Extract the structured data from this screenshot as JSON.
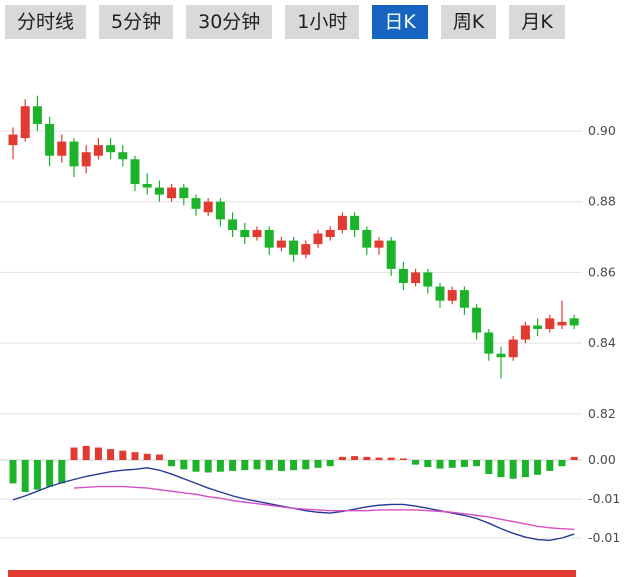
{
  "tabs": {
    "items": [
      {
        "name": "tab-timeline",
        "label": "分时线",
        "active": false
      },
      {
        "name": "tab-5min",
        "label": "5分钟",
        "active": false
      },
      {
        "name": "tab-30min",
        "label": "30分钟",
        "active": false
      },
      {
        "name": "tab-1hour",
        "label": "1小时",
        "active": false
      },
      {
        "name": "tab-daily-k",
        "label": "日K",
        "active": true
      },
      {
        "name": "tab-weekly-k",
        "label": "周K",
        "active": false
      },
      {
        "name": "tab-monthly-k",
        "label": "月K",
        "active": false
      }
    ]
  },
  "colors": {
    "up": "#e23a30",
    "down": "#1cb32b",
    "dif_line": "#273896",
    "dea_line": "#d44fc4",
    "grid": "#e3e3e3",
    "zero_line": "#cccccc",
    "axis_text": "#4a4a4a",
    "tab_bg": "#d9d9d9",
    "tab_active_bg": "#1565c0",
    "bottom_strip": "#e23a30"
  },
  "chart_data": {
    "type": "candlestick",
    "note_convention": "red = up (close >= open), green = down, Chinese market style",
    "price_panel": {
      "y_axis_ticks": [
        {
          "label": "0.90",
          "value": 0.9
        },
        {
          "label": "0.88",
          "value": 0.88
        },
        {
          "label": "0.86",
          "value": 0.86
        },
        {
          "label": "0.84",
          "value": 0.84
        },
        {
          "label": "0.82",
          "value": 0.82
        }
      ],
      "y_range": [
        0.815,
        0.9115
      ],
      "candles_ohlc": [
        [
          0.896,
          0.901,
          0.892,
          0.899
        ],
        [
          0.898,
          0.909,
          0.897,
          0.907
        ],
        [
          0.907,
          0.91,
          0.9,
          0.902
        ],
        [
          0.902,
          0.904,
          0.89,
          0.893
        ],
        [
          0.893,
          0.899,
          0.891,
          0.897
        ],
        [
          0.897,
          0.898,
          0.887,
          0.89
        ],
        [
          0.89,
          0.896,
          0.888,
          0.894
        ],
        [
          0.893,
          0.898,
          0.892,
          0.896
        ],
        [
          0.896,
          0.898,
          0.892,
          0.894
        ],
        [
          0.894,
          0.896,
          0.89,
          0.892
        ],
        [
          0.892,
          0.893,
          0.883,
          0.885
        ],
        [
          0.885,
          0.888,
          0.882,
          0.884
        ],
        [
          0.884,
          0.886,
          0.88,
          0.882
        ],
        [
          0.881,
          0.885,
          0.88,
          0.884
        ],
        [
          0.884,
          0.885,
          0.879,
          0.881
        ],
        [
          0.881,
          0.882,
          0.876,
          0.878
        ],
        [
          0.877,
          0.881,
          0.876,
          0.88
        ],
        [
          0.88,
          0.881,
          0.873,
          0.875
        ],
        [
          0.875,
          0.877,
          0.87,
          0.872
        ],
        [
          0.872,
          0.874,
          0.868,
          0.87
        ],
        [
          0.87,
          0.873,
          0.869,
          0.872
        ],
        [
          0.872,
          0.873,
          0.865,
          0.867
        ],
        [
          0.867,
          0.87,
          0.866,
          0.869
        ],
        [
          0.869,
          0.87,
          0.863,
          0.865
        ],
        [
          0.865,
          0.869,
          0.864,
          0.868
        ],
        [
          0.868,
          0.872,
          0.867,
          0.871
        ],
        [
          0.87,
          0.873,
          0.869,
          0.872
        ],
        [
          0.872,
          0.877,
          0.871,
          0.876
        ],
        [
          0.876,
          0.877,
          0.87,
          0.872
        ],
        [
          0.872,
          0.873,
          0.865,
          0.867
        ],
        [
          0.867,
          0.87,
          0.865,
          0.869
        ],
        [
          0.869,
          0.87,
          0.859,
          0.861
        ],
        [
          0.861,
          0.863,
          0.855,
          0.857
        ],
        [
          0.857,
          0.861,
          0.856,
          0.86
        ],
        [
          0.86,
          0.861,
          0.854,
          0.856
        ],
        [
          0.856,
          0.857,
          0.85,
          0.852
        ],
        [
          0.852,
          0.856,
          0.851,
          0.855
        ],
        [
          0.855,
          0.856,
          0.848,
          0.85
        ],
        [
          0.85,
          0.851,
          0.841,
          0.843
        ],
        [
          0.843,
          0.844,
          0.835,
          0.837
        ],
        [
          0.837,
          0.839,
          0.83,
          0.836
        ],
        [
          0.836,
          0.842,
          0.835,
          0.841
        ],
        [
          0.841,
          0.846,
          0.84,
          0.845
        ],
        [
          0.845,
          0.847,
          0.842,
          0.844
        ],
        [
          0.844,
          0.848,
          0.843,
          0.847
        ],
        [
          0.845,
          0.852,
          0.844,
          0.846
        ],
        [
          0.847,
          0.848,
          0.844,
          0.845
        ]
      ]
    },
    "macd_panel": {
      "y_axis_ticks": [
        {
          "label": "0.00",
          "value": 0.0
        },
        {
          "label": "-0.01",
          "value": -0.005
        },
        {
          "label": "-0.01",
          "value": -0.01
        }
      ],
      "histogram": [
        -0.003,
        -0.0041,
        -0.0038,
        -0.0034,
        -0.003,
        0.0016,
        0.0018,
        0.0016,
        0.0014,
        0.0012,
        0.001,
        0.0008,
        0.0007,
        -0.0008,
        -0.0012,
        -0.0015,
        -0.0016,
        -0.0015,
        -0.0014,
        -0.0013,
        -0.0012,
        -0.0013,
        -0.0014,
        -0.0013,
        -0.0012,
        -0.001,
        -0.0008,
        0.0004,
        0.0005,
        0.0004,
        0.0003,
        0.0003,
        0.0002,
        -0.0006,
        -0.0009,
        -0.0011,
        -0.001,
        -0.0009,
        -0.0008,
        -0.0018,
        -0.0022,
        -0.0024,
        -0.0022,
        -0.0019,
        -0.0014,
        -0.0008,
        0.0004
      ],
      "dif": [
        -0.0051,
        -0.0046,
        -0.004,
        -0.0034,
        -0.0029,
        -0.0025,
        -0.0021,
        -0.0018,
        -0.0015,
        -0.0013,
        -0.0012,
        -0.001,
        -0.0013,
        -0.0018,
        -0.0024,
        -0.003,
        -0.0036,
        -0.0041,
        -0.0046,
        -0.005,
        -0.0053,
        -0.0056,
        -0.0059,
        -0.0062,
        -0.0065,
        -0.0067,
        -0.0068,
        -0.0066,
        -0.0063,
        -0.006,
        -0.0058,
        -0.0057,
        -0.0057,
        -0.0059,
        -0.0062,
        -0.0065,
        -0.0068,
        -0.0071,
        -0.0075,
        -0.0081,
        -0.0088,
        -0.0094,
        -0.0099,
        -0.0102,
        -0.0103,
        -0.01,
        -0.0095
      ],
      "dea": [
        null,
        null,
        null,
        null,
        null,
        -0.0036,
        -0.0035,
        -0.0034,
        -0.0034,
        -0.0034,
        -0.0035,
        -0.0036,
        -0.0038,
        -0.004,
        -0.0042,
        -0.0044,
        -0.0047,
        -0.0049,
        -0.0052,
        -0.0054,
        -0.0056,
        -0.0058,
        -0.006,
        -0.0062,
        -0.0063,
        -0.0064,
        -0.0065,
        -0.0065,
        -0.0065,
        -0.0065,
        -0.0064,
        -0.0064,
        -0.0064,
        -0.0064,
        -0.0065,
        -0.0066,
        -0.0067,
        -0.0069,
        -0.0071,
        -0.0073,
        -0.0076,
        -0.0079,
        -0.0082,
        -0.0085,
        -0.0087,
        -0.0088,
        -0.0089
      ]
    }
  }
}
